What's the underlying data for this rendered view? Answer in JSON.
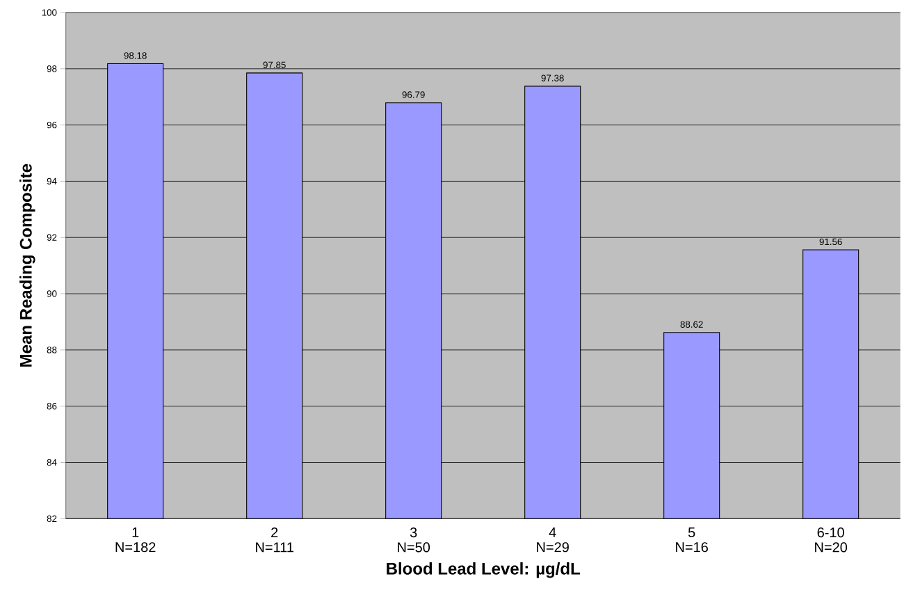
{
  "chart_data": {
    "type": "bar",
    "xlabel": "Blood Lead Level: µg/dL",
    "ylabel": "Mean Reading Composite",
    "categories": [
      "1 N=182",
      "2 N=111",
      "3 N=50",
      "4 N=29",
      "5 N=16",
      "6-10 N=20"
    ],
    "values": [
      98.18,
      97.85,
      96.79,
      97.38,
      88.62,
      91.56
    ],
    "color": "#9999ff",
    "ylim": [
      82,
      100
    ],
    "yticks": [
      82,
      84,
      86,
      88,
      90,
      92,
      94,
      96,
      98,
      100
    ],
    "grid": "y",
    "data_labels": true
  }
}
